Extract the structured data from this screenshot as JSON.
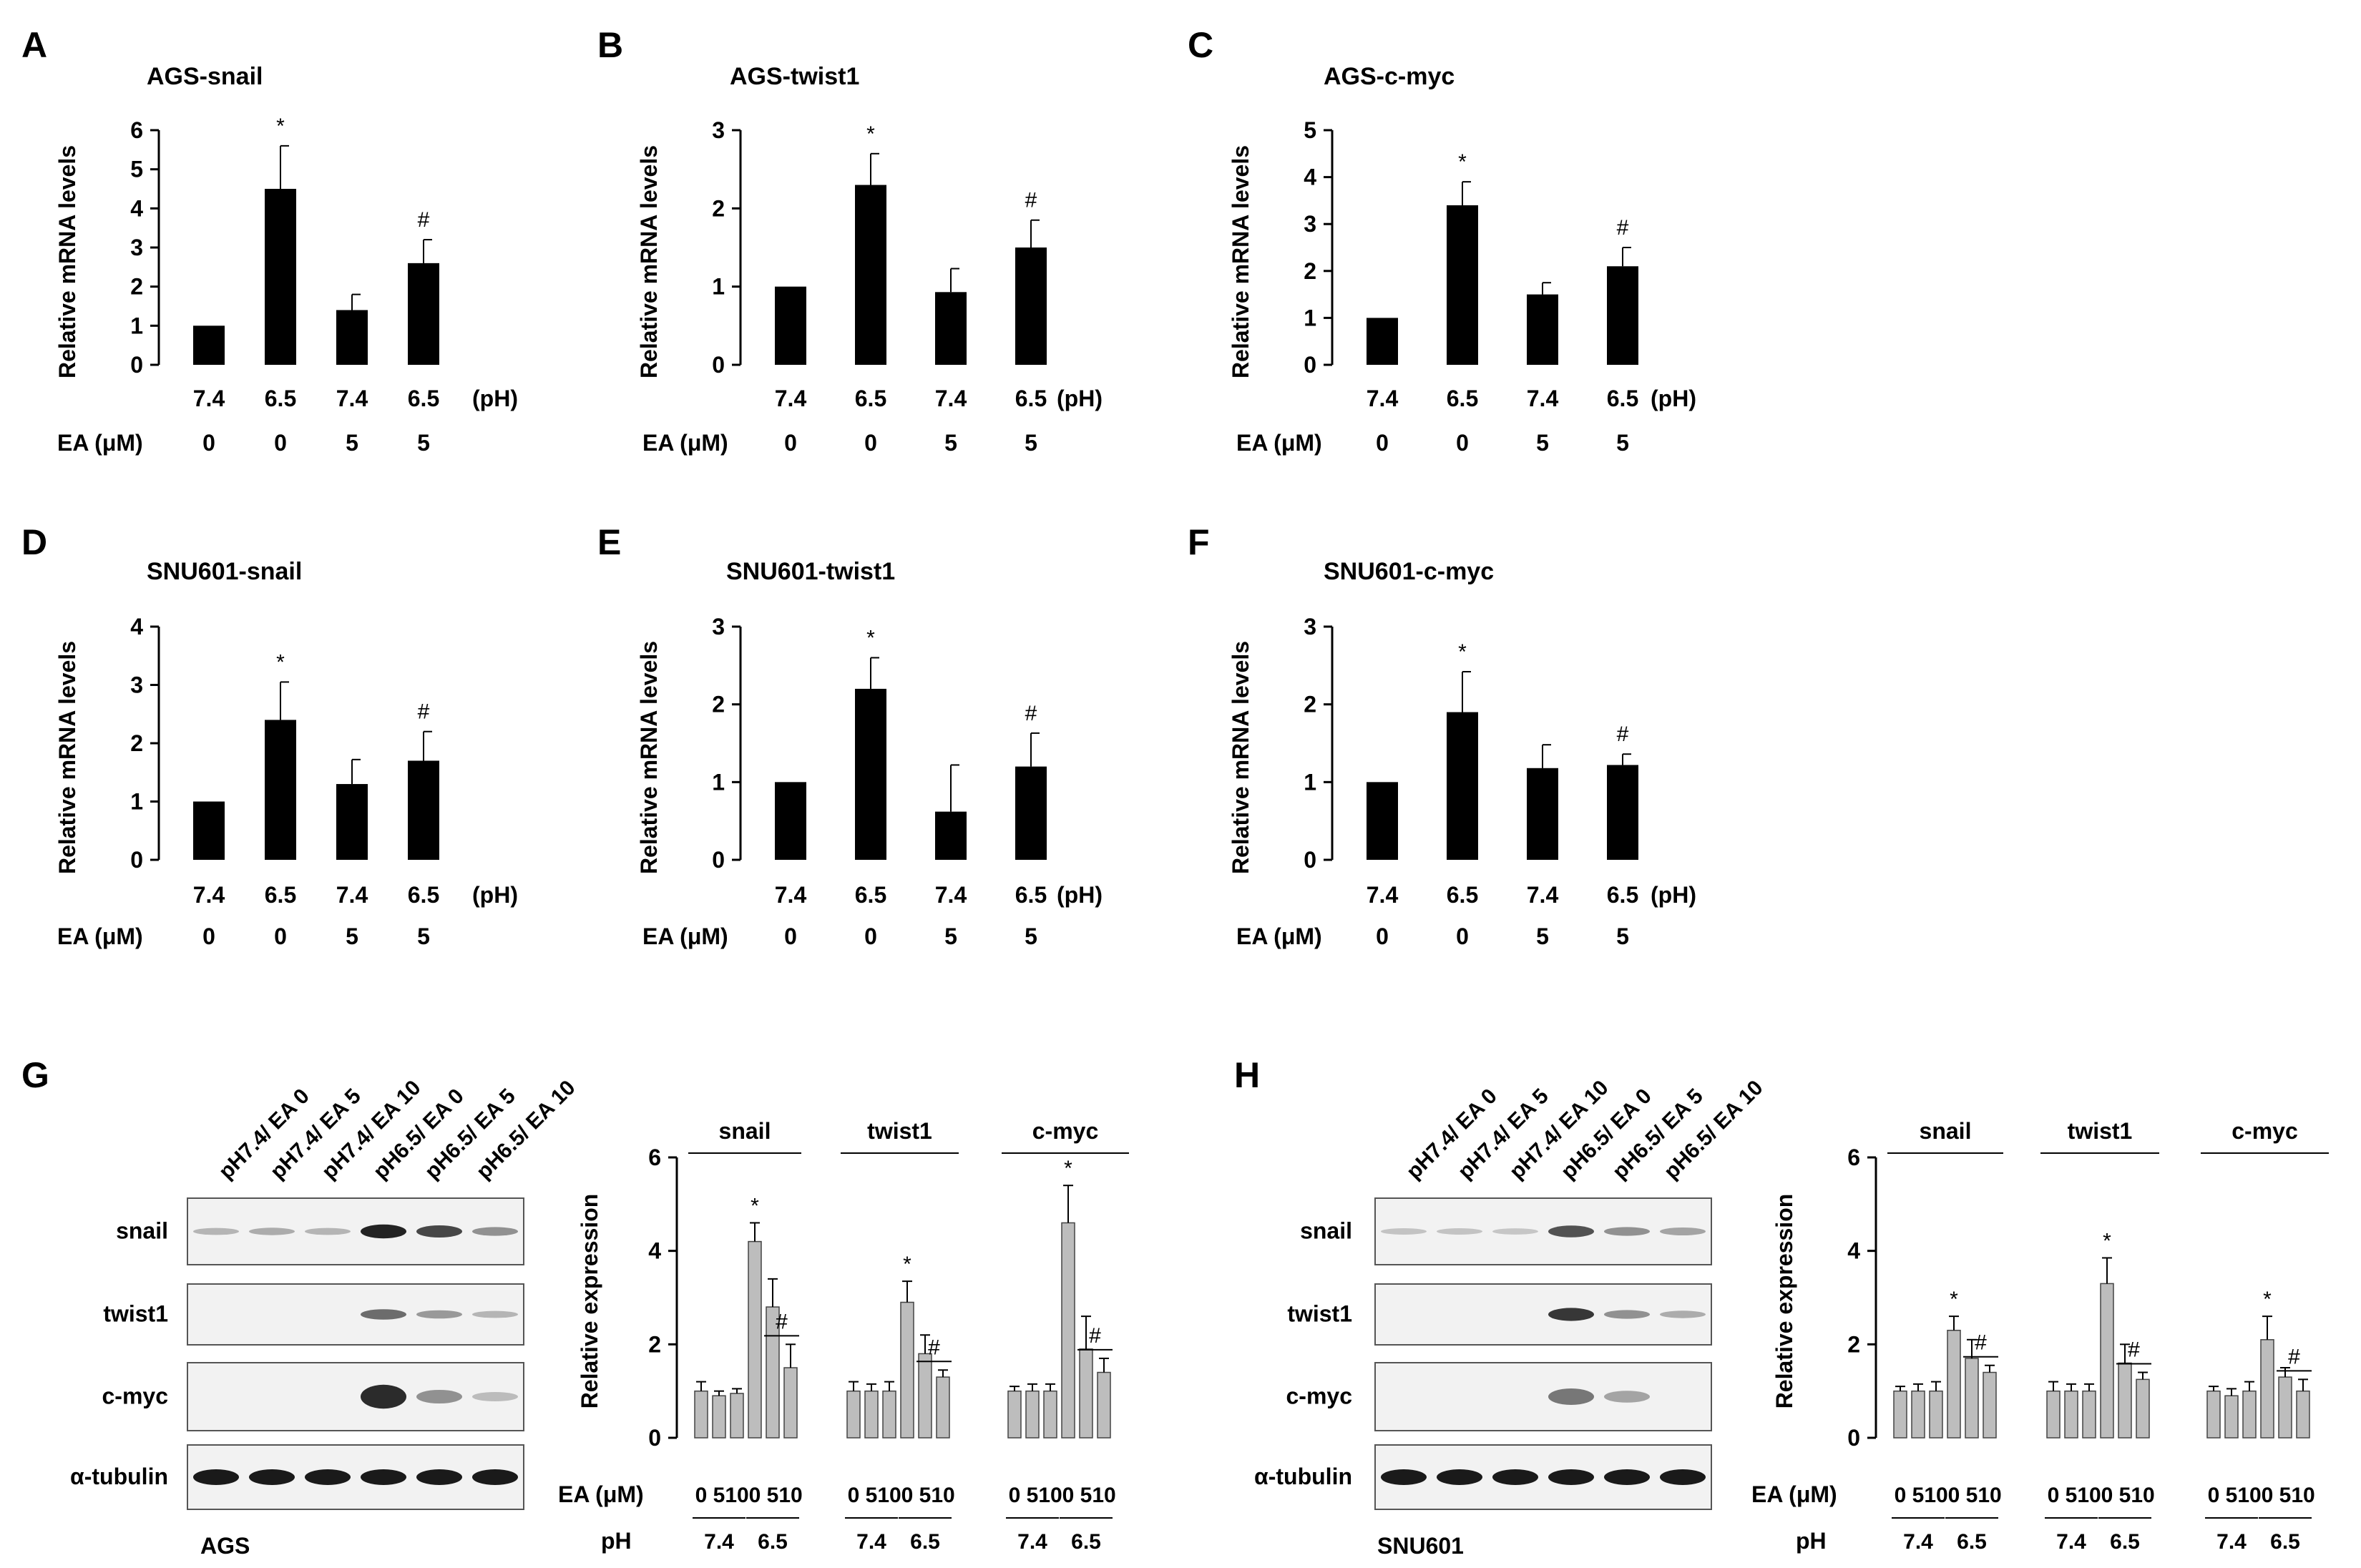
{
  "figure": {
    "panels": [
      "A",
      "B",
      "C",
      "D",
      "E",
      "F",
      "G",
      "H"
    ],
    "colors": {
      "bar_solid": "#000000",
      "bar_gray": "#bdbdbd",
      "axis": "#000000",
      "blot_bg": "#f2f2f2",
      "band": "#1a1a1a"
    }
  },
  "chart_data": [
    {
      "panel": "A",
      "type": "bar",
      "title": "AGS-snail",
      "ylabel": "Relative mRNA  levels",
      "ylim": [
        0,
        6
      ],
      "yticks": [
        0,
        1,
        2,
        3,
        4,
        5,
        6
      ],
      "ph": [
        "7.4",
        "6.5",
        "7.4",
        "6.5"
      ],
      "ea": [
        "0",
        "0",
        "5",
        "5"
      ],
      "row_ph_label": "(pH)",
      "row_ea_label": "EA (μM)",
      "values": [
        1.0,
        4.5,
        1.4,
        2.6
      ],
      "errors": [
        0,
        1.1,
        0.4,
        0.6
      ],
      "annotations": [
        "",
        "*",
        "",
        "#"
      ]
    },
    {
      "panel": "B",
      "type": "bar",
      "title": "AGS-twist1",
      "ylabel": "Relative mRNA  levels",
      "ylim": [
        0,
        3
      ],
      "yticks": [
        0,
        1,
        2,
        3
      ],
      "ph": [
        "7.4",
        "6.5",
        "7.4",
        "6.5"
      ],
      "ea": [
        "0",
        "0",
        "5",
        "5"
      ],
      "row_ph_label": "(pH)",
      "row_ea_label": "EA (μM)",
      "values": [
        1.0,
        2.3,
        0.93,
        1.5
      ],
      "errors": [
        0,
        0.4,
        0.3,
        0.35
      ],
      "annotations": [
        "",
        "*",
        "",
        "#"
      ]
    },
    {
      "panel": "C",
      "type": "bar",
      "title": "AGS-c-myc",
      "ylabel": "Relative mRNA  levels",
      "ylim": [
        0,
        5
      ],
      "yticks": [
        0,
        1,
        2,
        3,
        4,
        5
      ],
      "ph": [
        "7.4",
        "6.5",
        "7.4",
        "6.5"
      ],
      "ea": [
        "0",
        "0",
        "5",
        "5"
      ],
      "row_ph_label": "(pH)",
      "row_ea_label": "EA (μM)",
      "values": [
        1.0,
        3.4,
        1.5,
        2.1
      ],
      "errors": [
        0,
        0.5,
        0.25,
        0.4
      ],
      "annotations": [
        "",
        "*",
        "",
        "#"
      ]
    },
    {
      "panel": "D",
      "type": "bar",
      "title": "SNU601-snail",
      "ylabel": "Relative mRNA  levels",
      "ylim": [
        0,
        4
      ],
      "yticks": [
        0,
        1,
        2,
        3,
        4
      ],
      "ph": [
        "7.4",
        "6.5",
        "7.4",
        "6.5"
      ],
      "ea": [
        "0",
        "0",
        "5",
        "5"
      ],
      "row_ph_label": "(pH)",
      "row_ea_label": "EA (μM)",
      "values": [
        1.0,
        2.4,
        1.3,
        1.7
      ],
      "errors": [
        0,
        0.65,
        0.42,
        0.5
      ],
      "annotations": [
        "",
        "*",
        "",
        "#"
      ]
    },
    {
      "panel": "E",
      "type": "bar",
      "title": "SNU601-twist1",
      "ylabel": "Relative mRNA  levels",
      "ylim": [
        0,
        3
      ],
      "yticks": [
        0,
        1,
        2,
        3
      ],
      "ph": [
        "7.4",
        "6.5",
        "7.4",
        "6.5"
      ],
      "ea": [
        "0",
        "0",
        "5",
        "5"
      ],
      "row_ph_label": "(pH)",
      "row_ea_label": "EA (μM)",
      "values": [
        1.0,
        2.2,
        0.62,
        1.2
      ],
      "errors": [
        0,
        0.4,
        0.6,
        0.43
      ],
      "annotations": [
        "",
        "*",
        "",
        "#"
      ]
    },
    {
      "panel": "F",
      "type": "bar",
      "title": "SNU601-c-myc",
      "ylabel": "Relative mRNA  levels",
      "ylim": [
        0,
        3
      ],
      "yticks": [
        0,
        1,
        2,
        3
      ],
      "ph": [
        "7.4",
        "6.5",
        "7.4",
        "6.5"
      ],
      "ea": [
        "0",
        "0",
        "5",
        "5"
      ],
      "row_ph_label": "(pH)",
      "row_ea_label": "EA (μM)",
      "values": [
        1.0,
        1.9,
        1.18,
        1.22
      ],
      "errors": [
        0,
        0.52,
        0.3,
        0.14
      ],
      "annotations": [
        "",
        "*",
        "",
        "#"
      ]
    },
    {
      "panel": "G",
      "type": "bar",
      "cell_line": "AGS",
      "ylabel": "Relative expression",
      "ylim": [
        0,
        6
      ],
      "yticks": [
        0,
        2,
        4,
        6
      ],
      "lane_labels": [
        "pH7.4/ EA 0",
        "pH7.4/ EA 5",
        "pH7.4/ EA 10",
        "pH6.5/ EA 0",
        "pH6.5/ EA 5",
        "pH6.5/ EA 10"
      ],
      "blot_rows": [
        "snail",
        "twist1",
        "c-myc",
        "α-tubulin"
      ],
      "band_intensity": [
        [
          0.15,
          0.2,
          0.15,
          0.95,
          0.75,
          0.35
        ],
        [
          0.0,
          0.0,
          0.0,
          0.55,
          0.3,
          0.15
        ],
        [
          0.0,
          0.0,
          0.0,
          0.9,
          0.35,
          0.12
        ],
        [
          1.0,
          1.0,
          1.0,
          1.0,
          1.0,
          1.0
        ]
      ],
      "groups": [
        "snail",
        "twist1",
        "c-myc"
      ],
      "ea_ticks": [
        "0",
        "5",
        "10",
        "0",
        "5",
        "10"
      ],
      "ph_ticks": [
        "7.4",
        "6.5"
      ],
      "row_ea_label": "EA (μM)",
      "row_ph_label": "pH",
      "series": [
        {
          "name": "snail",
          "values": [
            1.0,
            0.9,
            0.95,
            4.2,
            2.8,
            1.5
          ],
          "errors": [
            0.2,
            0.1,
            0.1,
            0.4,
            0.6,
            0.5
          ]
        },
        {
          "name": "twist1",
          "values": [
            1.0,
            1.0,
            1.0,
            2.9,
            1.8,
            1.3
          ],
          "errors": [
            0.2,
            0.15,
            0.2,
            0.45,
            0.4,
            0.15
          ]
        },
        {
          "name": "c-myc",
          "values": [
            1.0,
            1.0,
            1.0,
            4.6,
            1.9,
            1.4
          ],
          "errors": [
            0.1,
            0.15,
            0.15,
            0.8,
            0.7,
            0.3
          ]
        }
      ],
      "annotations": {
        "star": "*",
        "hash": "#"
      }
    },
    {
      "panel": "H",
      "type": "bar",
      "cell_line": "SNU601",
      "ylabel": "Relative expression",
      "ylim": [
        0,
        6
      ],
      "yticks": [
        0,
        2,
        4,
        6
      ],
      "lane_labels": [
        "pH7.4/ EA 0",
        "pH7.4/ EA 5",
        "pH7.4/ EA 10",
        "pH6.5/ EA 0",
        "pH6.5/ EA 5",
        "pH6.5/ EA 10"
      ],
      "blot_rows": [
        "snail",
        "twist1",
        "c-myc",
        "α-tubulin"
      ],
      "band_intensity": [
        [
          0.08,
          0.08,
          0.06,
          0.7,
          0.35,
          0.25
        ],
        [
          0.0,
          0.0,
          0.0,
          0.85,
          0.35,
          0.2
        ],
        [
          0.0,
          0.0,
          0.0,
          0.5,
          0.25,
          0.0
        ],
        [
          1.0,
          1.0,
          1.0,
          1.0,
          1.0,
          1.0
        ]
      ],
      "groups": [
        "snail",
        "twist1",
        "c-myc"
      ],
      "ea_ticks": [
        "0",
        "5",
        "10",
        "0",
        "5",
        "10"
      ],
      "ph_ticks": [
        "7.4",
        "6.5"
      ],
      "row_ea_label": "EA (μM)",
      "row_ph_label": "pH",
      "series": [
        {
          "name": "snail",
          "values": [
            1.0,
            1.0,
            1.0,
            2.3,
            1.7,
            1.4
          ],
          "errors": [
            0.1,
            0.15,
            0.2,
            0.3,
            0.4,
            0.15
          ]
        },
        {
          "name": "twist1",
          "values": [
            1.0,
            1.0,
            1.0,
            3.3,
            1.6,
            1.25
          ],
          "errors": [
            0.2,
            0.15,
            0.15,
            0.55,
            0.4,
            0.15
          ]
        },
        {
          "name": "c-myc",
          "values": [
            1.0,
            0.9,
            1.0,
            2.1,
            1.3,
            1.0
          ],
          "errors": [
            0.1,
            0.15,
            0.2,
            0.5,
            0.2,
            0.25
          ]
        }
      ],
      "annotations": {
        "star": "*",
        "hash": "#"
      }
    }
  ]
}
